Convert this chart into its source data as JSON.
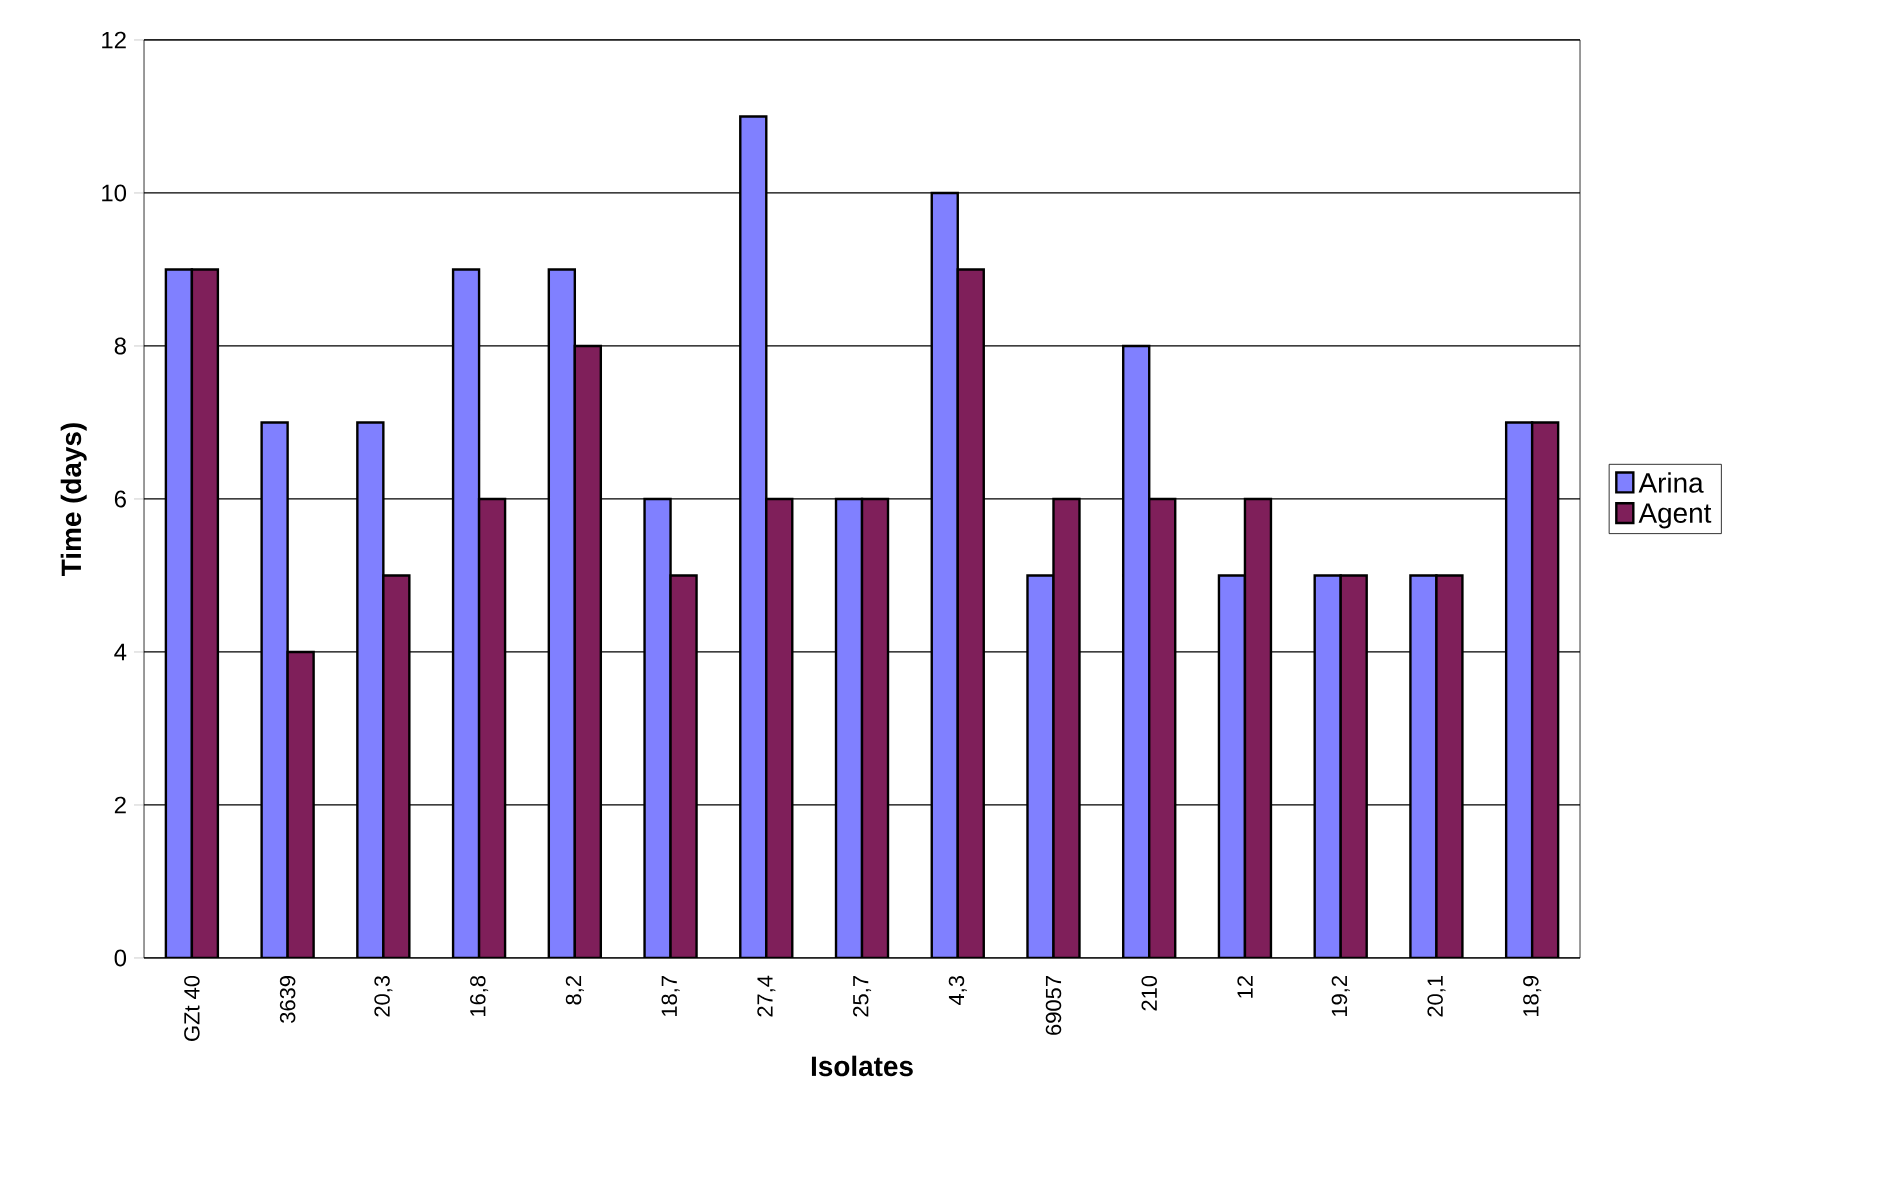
{
  "chart_data": {
    "type": "bar",
    "xlabel": "Isolates",
    "ylabel": "Time (days)",
    "categories": [
      "GZt 40",
      "3639",
      "20,3",
      "16,8",
      "8,2",
      "18,7",
      "27,4",
      "25,7",
      "4,3",
      "69057",
      "210",
      "12",
      "19,2",
      "20,1",
      "18,9"
    ],
    "series": [
      {
        "name": "Arina",
        "color": "#8080ff",
        "values": [
          9,
          7,
          7,
          9,
          9,
          6,
          11,
          6,
          10,
          5,
          8,
          5,
          5,
          5,
          7
        ]
      },
      {
        "name": "Agent",
        "color": "#7f1f5a",
        "values": [
          9,
          4,
          5,
          6,
          8,
          5,
          6,
          6,
          9,
          6,
          6,
          6,
          5,
          5,
          7
        ]
      }
    ],
    "ylim": [
      0,
      12
    ],
    "yticks": [
      0,
      2,
      4,
      6,
      8,
      10,
      12
    ],
    "grid": "y",
    "legend": "right"
  }
}
